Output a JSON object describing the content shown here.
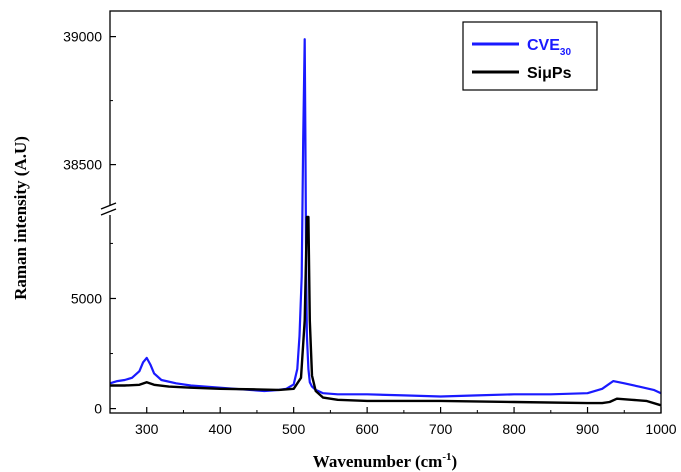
{
  "chart_data": {
    "type": "line",
    "title": "",
    "xlabel": "Wavenumber (cm",
    "xlabel_sup": "-1",
    "xlabel_end": ")",
    "ylabel": "Raman intensity (A.U)",
    "xlim": [
      250,
      1000
    ],
    "y_broken_axis": true,
    "ylim_lower": [
      -200,
      8700
    ],
    "ylim_upper": [
      38350,
      39100
    ],
    "x_ticks": [
      300,
      400,
      500,
      600,
      700,
      800,
      900,
      1000
    ],
    "y_ticks_lower": [
      0,
      5000
    ],
    "y_ticks_upper": [
      38500,
      39000
    ],
    "legend_position": "top-right",
    "series": [
      {
        "name": "CVE",
        "name_sub": "30",
        "color": "#1a1aff",
        "x": [
          250,
          260,
          270,
          280,
          290,
          295,
          300,
          305,
          310,
          320,
          340,
          360,
          380,
          400,
          420,
          440,
          460,
          470,
          480,
          490,
          500,
          505,
          508,
          511,
          513,
          515,
          516,
          517,
          518,
          520,
          522,
          525,
          530,
          540,
          560,
          600,
          650,
          700,
          750,
          800,
          850,
          900,
          920,
          935,
          950,
          970,
          990,
          1000
        ],
        "y": [
          1150,
          1250,
          1300,
          1400,
          1700,
          2100,
          2300,
          2000,
          1600,
          1300,
          1150,
          1050,
          1000,
          950,
          900,
          850,
          800,
          820,
          850,
          900,
          1100,
          1800,
          3300,
          6000,
          38600,
          38990,
          38600,
          6000,
          3300,
          1800,
          1200,
          1000,
          850,
          700,
          650,
          650,
          600,
          550,
          600,
          650,
          650,
          700,
          900,
          1250,
          1150,
          1000,
          850,
          700
        ]
      },
      {
        "name": "SiμPs",
        "color": "#000000",
        "x": [
          250,
          270,
          290,
          300,
          310,
          330,
          360,
          400,
          450,
          480,
          500,
          510,
          515,
          518,
          520,
          522,
          525,
          530,
          540,
          560,
          600,
          700,
          800,
          900,
          920,
          930,
          940,
          960,
          980,
          1000
        ],
        "y": [
          1050,
          1050,
          1080,
          1200,
          1080,
          1000,
          950,
          900,
          870,
          850,
          900,
          1400,
          4000,
          8700,
          8700,
          4000,
          1500,
          800,
          500,
          400,
          350,
          350,
          300,
          250,
          250,
          300,
          450,
          400,
          350,
          150
        ]
      }
    ]
  }
}
